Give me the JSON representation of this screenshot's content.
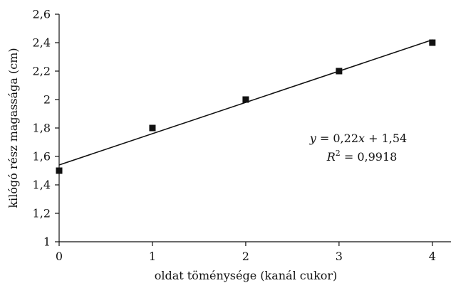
{
  "chart_data": {
    "type": "scatter",
    "title": "",
    "xlabel": "oldat töménysége (kanál cukor)",
    "ylabel": "kilógó rész magassága (cm)",
    "xlim": [
      0,
      4.2
    ],
    "ylim": [
      1,
      2.6
    ],
    "xticks": [
      0,
      1,
      2,
      3,
      4
    ],
    "xtick_labels": [
      "0",
      "1",
      "2",
      "3",
      "4"
    ],
    "yticks": [
      1,
      1.2,
      1.4,
      1.6,
      1.8,
      2,
      2.2,
      2.4,
      2.6
    ],
    "ytick_labels": [
      "1",
      "1,2",
      "1,4",
      "1,6",
      "1,8",
      "2",
      "2,2",
      "2,4",
      "2,6"
    ],
    "grid": false,
    "series": [
      {
        "x": [
          0,
          1,
          2,
          3,
          4
        ],
        "values": [
          1.5,
          1.8,
          2.0,
          2.2,
          2.4
        ]
      }
    ],
    "trendline": {
      "slope": 0.22,
      "intercept": 1.54,
      "x_range": [
        0,
        4
      ]
    },
    "annotations": {
      "equation": {
        "y_var": "y",
        "eq_part1": " = 0,22",
        "x_var": "x",
        "eq_part2": " + 1,54"
      },
      "r_squared": {
        "r_var": "R",
        "sup": "2",
        "value": " = 0,9918"
      }
    }
  }
}
